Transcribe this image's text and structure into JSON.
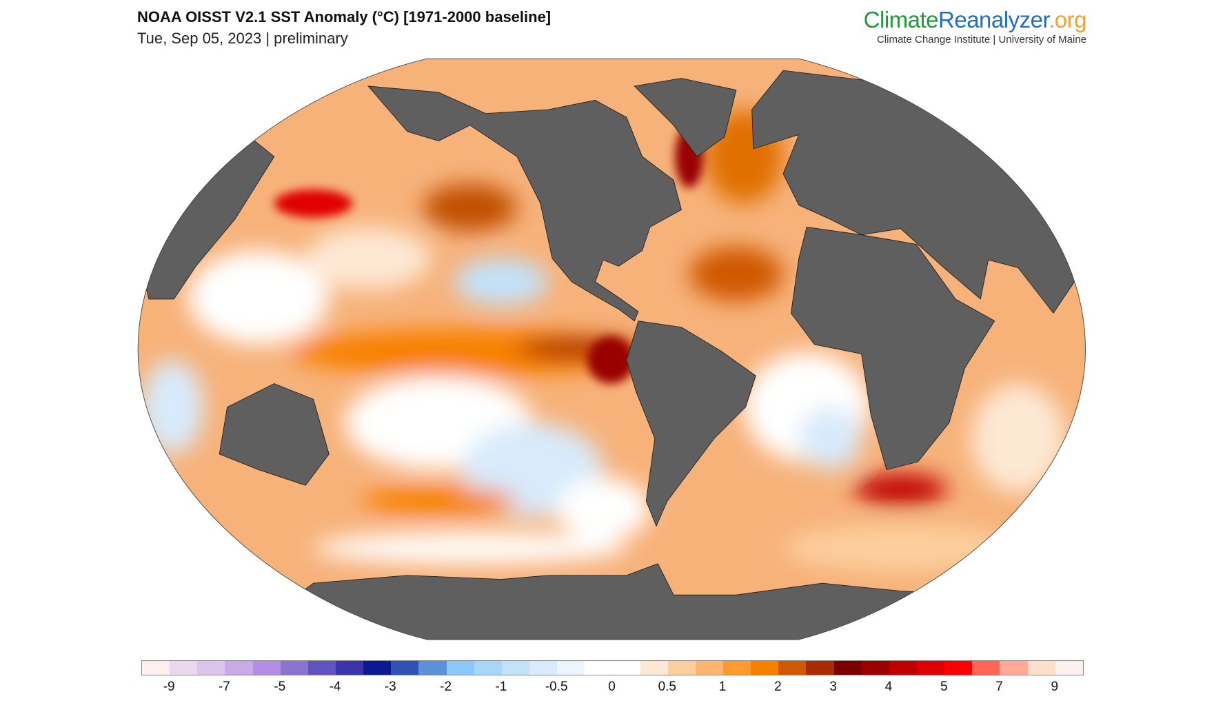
{
  "header": {
    "title": "NOAA OISST V2.1 SST Anomaly (°C) [1971-2000 baseline]",
    "subtitle": "Tue, Sep 05, 2023 | preliminary"
  },
  "brand": {
    "part1": "Climate",
    "part2": "Reanalyzer",
    "part3": ".org",
    "subtitle": "Climate Change Institute | University of Maine"
  },
  "colorbar": {
    "colors": [
      "#fdeef0",
      "#ead8ee",
      "#dcc4ec",
      "#c9a9e6",
      "#b48ee2",
      "#8a74d0",
      "#6254c0",
      "#3a35a8",
      "#0c1a92",
      "#3052b5",
      "#5e90d8",
      "#8cc8fa",
      "#a8d6f8",
      "#c2e2fa",
      "#d8eafb",
      "#ecf5fe",
      "#ffffff",
      "#ffffff",
      "#fde8d4",
      "#fccf9e",
      "#fbb56e",
      "#fa9a30",
      "#f88000",
      "#d05800",
      "#a82c00",
      "#7a0000",
      "#9a0000",
      "#c00000",
      "#e00000",
      "#ff0000",
      "#ff6655",
      "#ffaa99",
      "#fde0cc",
      "#fdf0f0"
    ],
    "labels": [
      "-9",
      "-7",
      "-5",
      "-4",
      "-3",
      "-2",
      "-1",
      "-0.5",
      "0",
      "0.5",
      "1",
      "2",
      "3",
      "4",
      "5",
      "7",
      "9"
    ]
  },
  "map": {
    "land_color": "#5f5f5f",
    "ocean_base_color": "#f7b27a",
    "projection": "Robinson"
  }
}
